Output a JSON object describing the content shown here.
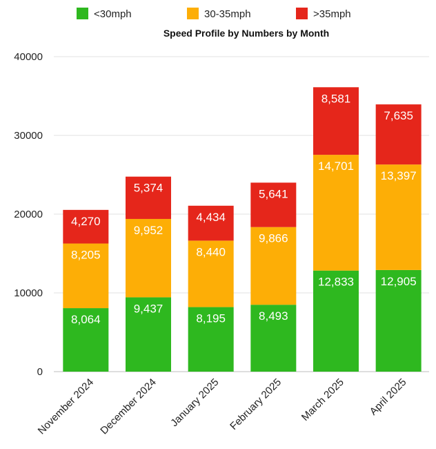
{
  "chart_data": {
    "type": "bar",
    "stacked": true,
    "title": "Speed Profile by Numbers by Month",
    "categories": [
      "November 2024",
      "December 2024",
      "January 2025",
      "February 2025",
      "March 2025",
      "April 2025"
    ],
    "series": [
      {
        "name": "<30mph",
        "color": "#2eb81f",
        "values": [
          8064,
          9437,
          8195,
          8493,
          12833,
          12905
        ],
        "labels": [
          "8,064",
          "9,437",
          "8,195",
          "8,493",
          "12,833",
          "12,905"
        ]
      },
      {
        "name": "30-35mph",
        "color": "#fdae06",
        "values": [
          8205,
          9952,
          8440,
          9866,
          14701,
          13397
        ],
        "labels": [
          "8,205",
          "9,952",
          "8,440",
          "9,866",
          "14,701",
          "13,397"
        ]
      },
      {
        "name": ">35mph",
        "color": "#e5261b",
        "values": [
          4270,
          5374,
          4434,
          5641,
          8581,
          7635
        ],
        "labels": [
          "4,270",
          "5,374",
          "4,434",
          "5,641",
          "8,581",
          "7,635"
        ]
      }
    ],
    "ylim": [
      0,
      40000
    ],
    "yticks": [
      "0",
      "10000",
      "20000",
      "30000",
      "40000"
    ],
    "ytick_values": [
      0,
      10000,
      20000,
      30000,
      40000
    ],
    "grid": true,
    "legend_position": "top"
  }
}
